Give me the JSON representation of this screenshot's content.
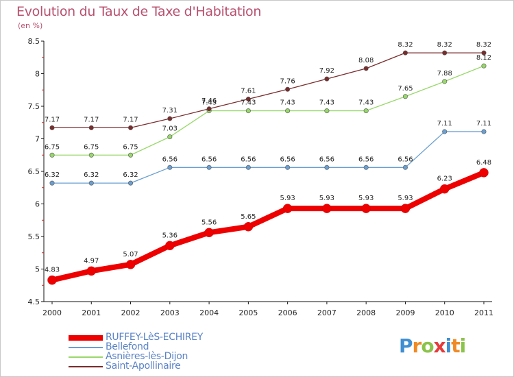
{
  "title": "Evolution du Taux de Taxe d'Habitation",
  "unit_label": "(en %)",
  "logo": {
    "text": "Proxiti",
    "letters": [
      {
        "ch": "P",
        "color": "#3f8fd2"
      },
      {
        "ch": "r",
        "color": "#ef8a24"
      },
      {
        "ch": "o",
        "color": "#8bc34a"
      },
      {
        "ch": "x",
        "color": "#e63b3b"
      },
      {
        "ch": "i",
        "color": "#3f8fd2"
      },
      {
        "ch": "t",
        "color": "#ef8a24"
      },
      {
        "ch": "i",
        "color": "#8bc34a"
      }
    ]
  },
  "chart_data": {
    "type": "line",
    "title": "Evolution du Taux de Taxe d'Habitation",
    "ylabel": "(en %)",
    "xlabel": "",
    "x": [
      "2000",
      "2001",
      "2002",
      "2003",
      "2004",
      "2005",
      "2006",
      "2007",
      "2008",
      "2009",
      "2010",
      "2011"
    ],
    "ylim": [
      4.5,
      8.5
    ],
    "yticks": [
      "4.5",
      "5",
      "5.5",
      "6",
      "6.5",
      "7",
      "7.5",
      "8",
      "8.5"
    ],
    "grid": false,
    "legend_position": "bottom-left",
    "series": [
      {
        "name": "RUFFEY-LèS-ECHIREY",
        "color": "#ee0000",
        "values": [
          4.83,
          4.97,
          5.07,
          5.36,
          5.56,
          5.65,
          5.93,
          5.93,
          5.93,
          5.93,
          6.23,
          6.48
        ],
        "labels": [
          "4.83",
          "4.97",
          "5.07",
          "5.36",
          "5.56",
          "5.65",
          "5.93",
          "5.93",
          "5.93",
          "5.93",
          "6.23",
          "6.48"
        ]
      },
      {
        "name": "Bellefond",
        "color": "#6a9fd0",
        "values": [
          6.32,
          6.32,
          6.32,
          6.56,
          6.56,
          6.56,
          6.56,
          6.56,
          6.56,
          6.56,
          7.11,
          7.11
        ],
        "labels": [
          "6.32",
          "6.32",
          "6.32",
          "6.56",
          "6.56",
          "6.56",
          "6.56",
          "6.56",
          "6.56",
          "6.56",
          "7.11",
          "7.11"
        ]
      },
      {
        "name": "Asnières-lès-Dijon",
        "color": "#98d86a",
        "values": [
          6.75,
          6.75,
          6.75,
          7.03,
          7.43,
          7.43,
          7.43,
          7.43,
          7.43,
          7.65,
          7.88,
          8.12
        ],
        "labels": [
          "6.75",
          "6.75",
          "6.75",
          "7.03",
          "7.43",
          "7.43",
          "7.43",
          "7.43",
          "7.43",
          "7.65",
          "7.88",
          "8.12"
        ]
      },
      {
        "name": "Saint-Apollinaire",
        "color": "#7a2c2c",
        "values": [
          7.17,
          7.17,
          7.17,
          7.31,
          7.46,
          7.61,
          7.76,
          7.92,
          8.08,
          8.32,
          8.32,
          8.32
        ],
        "labels": [
          "7.17",
          "7.17",
          "7.17",
          "7.31",
          "7.46",
          "7.61",
          "7.76",
          "7.92",
          "8.08",
          "8.32",
          "8.32",
          "8.32"
        ]
      }
    ]
  }
}
